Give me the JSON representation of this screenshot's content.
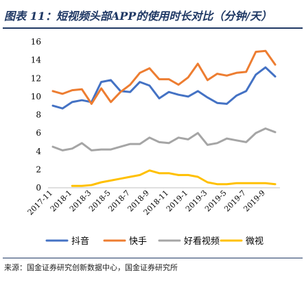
{
  "header": {
    "title": "图表 11：短视频头部APP的使用时长对比（分钟/天）"
  },
  "footer": {
    "source": "来源：国金证券研究创新数据中心，国金证券研究所"
  },
  "chart_data": {
    "type": "line",
    "title": "图表 11：短视频头部APP的使用时长对比（分钟/天）",
    "xlabel": "",
    "ylabel": "",
    "ylim": [
      0,
      16
    ],
    "yticks": [
      0,
      2,
      4,
      6,
      8,
      10,
      12,
      14,
      16
    ],
    "grid": false,
    "legend_position": "bottom",
    "categories": [
      "2017-11",
      "2017-12",
      "2018-1",
      "2018-2",
      "2018-3",
      "2018-4",
      "2018-5",
      "2018-6",
      "2018-7",
      "2018-8",
      "2018-9",
      "2018-10",
      "2018-11",
      "2018-12",
      "2019-1",
      "2019-2",
      "2019-3",
      "2019-4",
      "2019-5",
      "2019-6",
      "2019-7",
      "2019-8",
      "2019-9",
      "2019-10"
    ],
    "tick_labels": [
      "2017-11",
      "2018-1",
      "2018-3",
      "2018-5",
      "2018-7",
      "2018-9",
      "2018-11",
      "2019-1",
      "2019-3",
      "2019-5",
      "2019-7",
      "2019-9"
    ],
    "series": [
      {
        "name": "抖音",
        "color": "#4472c4",
        "values": [
          9.0,
          8.7,
          9.4,
          9.6,
          9.4,
          11.6,
          11.8,
          10.6,
          10.5,
          11.6,
          11.2,
          9.8,
          10.5,
          10.2,
          10.0,
          10.6,
          9.9,
          9.3,
          9.2,
          10.1,
          10.6,
          12.4,
          13.2,
          12.2
        ]
      },
      {
        "name": "快手",
        "color": "#ed7d31",
        "values": [
          10.6,
          10.3,
          10.7,
          10.8,
          9.2,
          10.9,
          9.4,
          10.5,
          11.3,
          12.6,
          13.1,
          11.9,
          11.9,
          11.3,
          12.1,
          13.6,
          11.8,
          12.5,
          12.3,
          12.6,
          12.7,
          14.9,
          15.0,
          13.5
        ]
      },
      {
        "name": "好看视频",
        "color": "#a5a5a5",
        "values": [
          4.5,
          4.1,
          4.3,
          4.9,
          4.1,
          4.2,
          4.2,
          4.5,
          4.8,
          4.8,
          5.5,
          5.0,
          4.9,
          5.5,
          5.3,
          6.0,
          4.7,
          4.9,
          5.4,
          5.2,
          5.0,
          6.0,
          6.5,
          6.1
        ]
      },
      {
        "name": "微视",
        "color": "#ffc000",
        "values": [
          null,
          null,
          0.2,
          0.2,
          0.3,
          0.6,
          0.8,
          1.0,
          1.2,
          1.4,
          1.9,
          1.6,
          1.6,
          1.4,
          1.4,
          1.2,
          0.6,
          0.4,
          0.4,
          0.5,
          0.5,
          0.5,
          0.5,
          0.4
        ]
      }
    ]
  }
}
